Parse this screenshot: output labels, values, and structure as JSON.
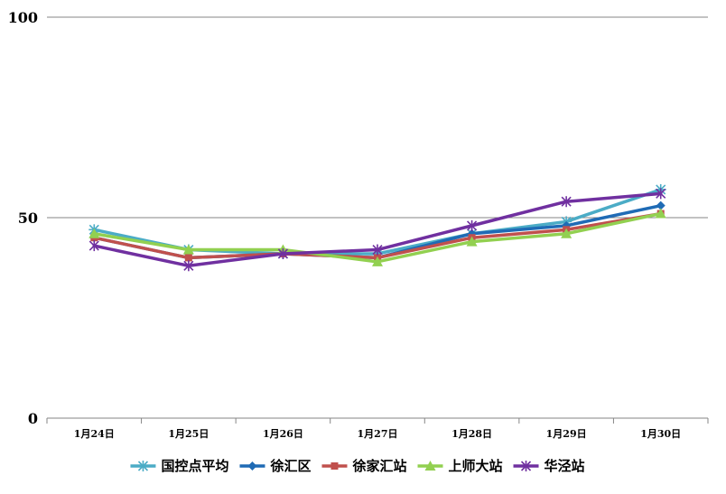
{
  "chart_data": {
    "type": "line",
    "title": "",
    "xlabel": "",
    "ylabel": "",
    "categories": [
      "1月24日",
      "1月25日",
      "1月26日",
      "1月27日",
      "1月28日",
      "1月29日",
      "1月30日"
    ],
    "ylim": [
      0,
      100
    ],
    "yticks": [
      0,
      50,
      100
    ],
    "grid": "horizontal",
    "legend": "bottom",
    "series": [
      {
        "name": "国控点平均",
        "color": "#4bacc6",
        "marker": "star",
        "values": [
          47,
          42,
          41,
          41,
          46,
          49,
          57
        ]
      },
      {
        "name": "徐汇区",
        "color": "#1f6bb5",
        "marker": "diamond",
        "values": [
          45,
          40,
          41,
          40,
          46,
          48,
          53
        ]
      },
      {
        "name": "徐家汇站",
        "color": "#c0504d",
        "marker": "square",
        "values": [
          45,
          40,
          41,
          40,
          45,
          47,
          51
        ]
      },
      {
        "name": "上师大站",
        "color": "#92d050",
        "marker": "triangle",
        "values": [
          46,
          42,
          42,
          39,
          44,
          46,
          51
        ]
      },
      {
        "name": "华泾站",
        "color": "#7030a0",
        "marker": "asterisk",
        "values": [
          43,
          38,
          41,
          42,
          48,
          54,
          56
        ]
      }
    ]
  }
}
